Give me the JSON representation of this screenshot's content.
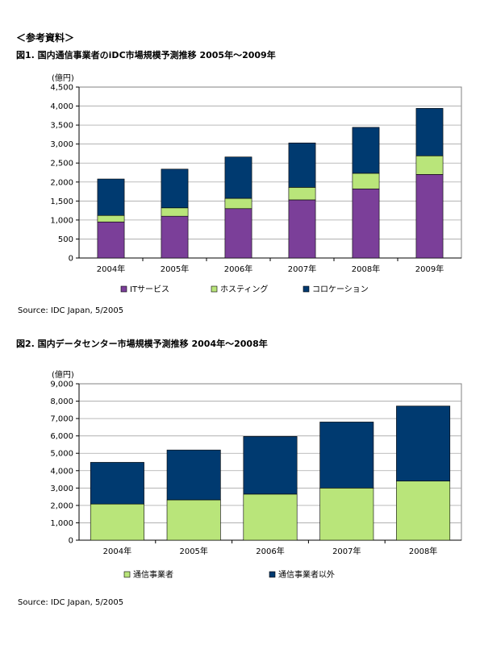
{
  "header": "＜参考資料＞",
  "charts": [
    {
      "title": "図1. 国内通信事業者のiDC市場規模予測推移 2005年～2009年",
      "source": "Source: IDC Japan, 5/2005",
      "chart_data": {
        "type": "bar",
        "stacked": true,
        "unit_label": "(億円)",
        "categories": [
          "2004年",
          "2005年",
          "2006年",
          "2007年",
          "2008年",
          "2009年"
        ],
        "ylim": [
          0,
          4500
        ],
        "ytick_step": 500,
        "legend_position": "bottom",
        "series": [
          {
            "name": "ITサービス",
            "color": "#7b3f99",
            "values": [
              950,
              1100,
              1300,
              1530,
              1820,
              2200
            ]
          },
          {
            "name": "ホスティング",
            "color": "#b9e57a",
            "values": [
              170,
              220,
              270,
              330,
              410,
              490
            ]
          },
          {
            "name": "コロケーション",
            "color": "#003a70",
            "values": [
              960,
              1020,
              1090,
              1170,
              1210,
              1250
            ]
          }
        ]
      }
    },
    {
      "title": "図2. 国内データセンター市場規模予測推移 2004年～2008年",
      "source": "Source: IDC Japan, 5/2005",
      "chart_data": {
        "type": "bar",
        "stacked": true,
        "unit_label": "(億円)",
        "categories": [
          "2004年",
          "2005年",
          "2006年",
          "2007年",
          "2008年"
        ],
        "ylim": [
          0,
          9000
        ],
        "ytick_step": 1000,
        "legend_position": "bottom",
        "series": [
          {
            "name": "通信事業者",
            "color": "#b9e57a",
            "values": [
              2080,
              2320,
              2650,
              3000,
              3400
            ]
          },
          {
            "name": "通信事業者以外",
            "color": "#003a70",
            "values": [
              2400,
              2870,
              3320,
              3800,
              4320
            ]
          }
        ]
      }
    }
  ]
}
